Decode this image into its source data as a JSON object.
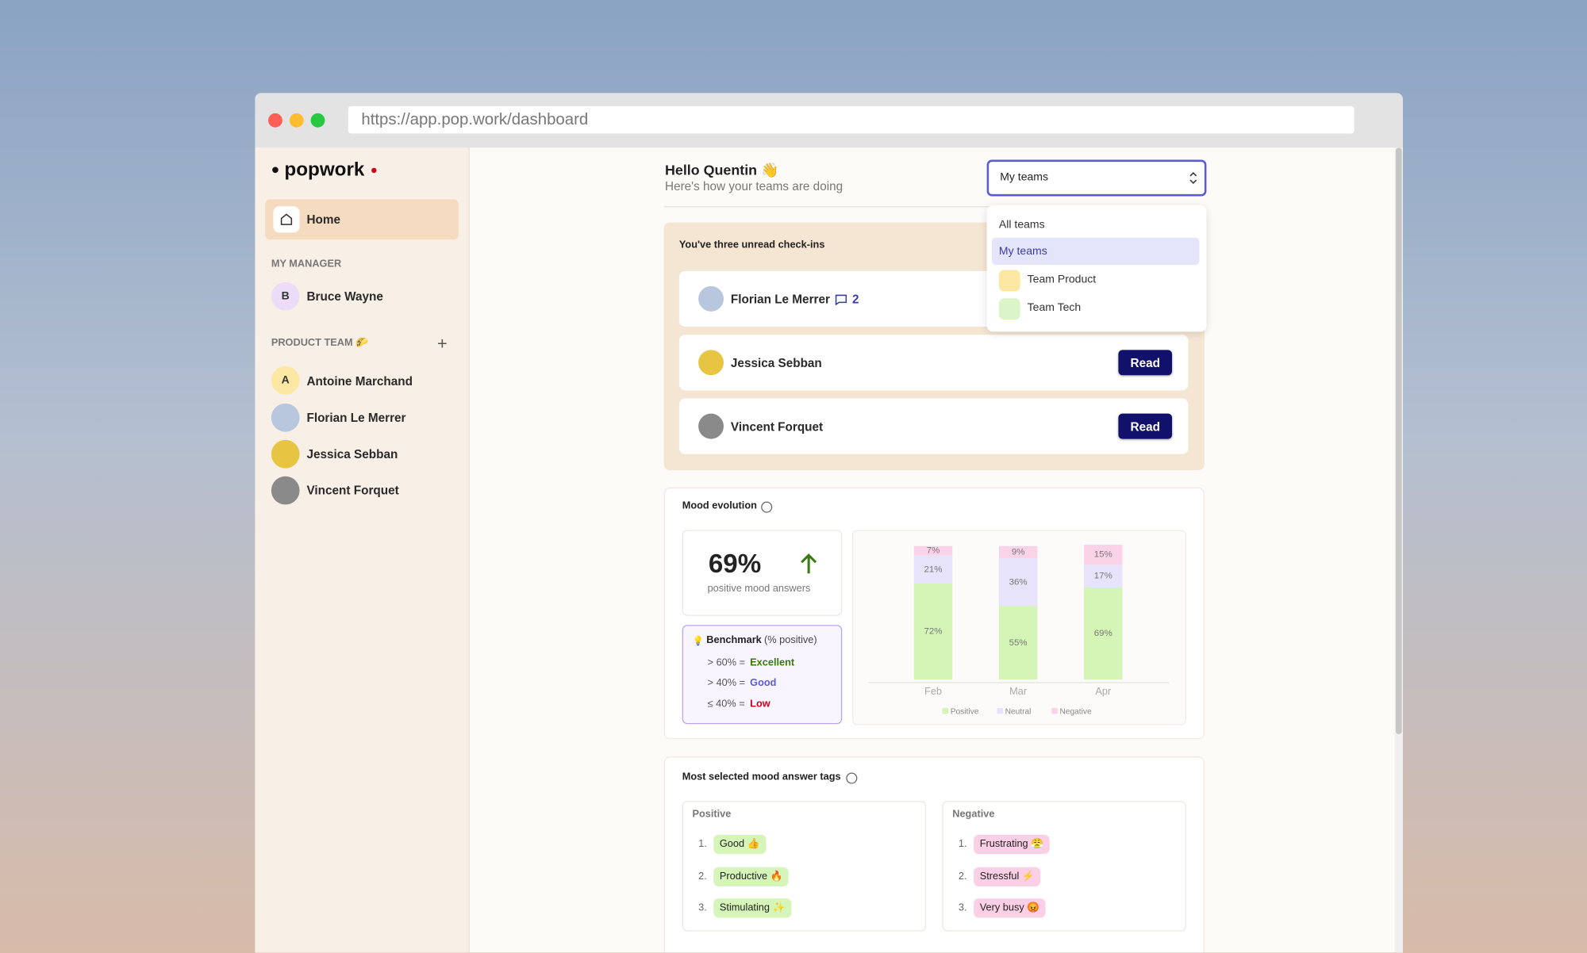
{
  "browser": {
    "url": "https://app.pop.work/dashboard"
  },
  "sidebar": {
    "logo": "popwork",
    "home": "Home",
    "manager_heading": "MY MANAGER",
    "manager": {
      "initial": "B",
      "name": "Bruce Wayne"
    },
    "team_heading": "PRODUCT TEAM 🌮",
    "add": "+",
    "members": [
      {
        "initial": "A",
        "name": "Antoine Marchand"
      },
      {
        "name": "Florian Le Merrer"
      },
      {
        "name": "Jessica Sebban"
      },
      {
        "name": "Vincent Forquet"
      }
    ]
  },
  "header": {
    "greeting": "Hello Quentin 👋",
    "subtitle": "Here's how your teams are doing"
  },
  "team_select": {
    "value": "My teams",
    "options": [
      "All teams",
      "My teams",
      "Team Product",
      "Team Tech"
    ]
  },
  "checkins": {
    "title": "You've three unread check-ins",
    "items": [
      {
        "name": "Florian Le Merrer",
        "comments": 2
      },
      {
        "name": "Jessica Sebban",
        "action": "Read"
      },
      {
        "name": "Vincent Forquet",
        "action": "Read"
      }
    ]
  },
  "mood": {
    "title": "Mood evolution",
    "headline": "69%",
    "headline_label": "positive mood answers",
    "benchmark": {
      "title": "Benchmark",
      "note": "(% positive)",
      "rows": [
        {
          "rule": "> 60% =",
          "level": "Excellent"
        },
        {
          "rule": "> 40% =",
          "level": "Good"
        },
        {
          "rule": "≤ 40% =",
          "level": "Low"
        }
      ]
    },
    "chart": {
      "type": "bar",
      "stacked": true,
      "categories": [
        "Feb",
        "Mar",
        "Apr"
      ],
      "series": [
        {
          "name": "Positive",
          "color": "#d5f5b6",
          "values": [
            72,
            55,
            69
          ],
          "value_labels": [
            "72%",
            "55%",
            "69%"
          ]
        },
        {
          "name": "Neutral",
          "color": "#e6e3fa",
          "values": [
            21,
            36,
            17
          ],
          "value_labels": [
            "21%",
            "36%",
            "17%"
          ]
        },
        {
          "name": "Negative",
          "color": "#fbd3e8",
          "values": [
            7,
            9,
            15
          ],
          "value_labels": [
            "7%",
            "9%",
            "15%"
          ]
        }
      ]
    }
  },
  "tags": {
    "title": "Most selected mood answer tags",
    "positive": {
      "heading": "Positive",
      "items": [
        {
          "rank": "1.",
          "label": "Good 👍"
        },
        {
          "rank": "2.",
          "label": "Productive 🔥"
        },
        {
          "rank": "3.",
          "label": "Stimulating ✨"
        }
      ]
    },
    "negative": {
      "heading": "Negative",
      "items": [
        {
          "rank": "1.",
          "label": "Frustrating 😤"
        },
        {
          "rank": "2.",
          "label": "Stressful ⚡"
        },
        {
          "rank": "3.",
          "label": "Very busy 😡"
        }
      ]
    }
  }
}
